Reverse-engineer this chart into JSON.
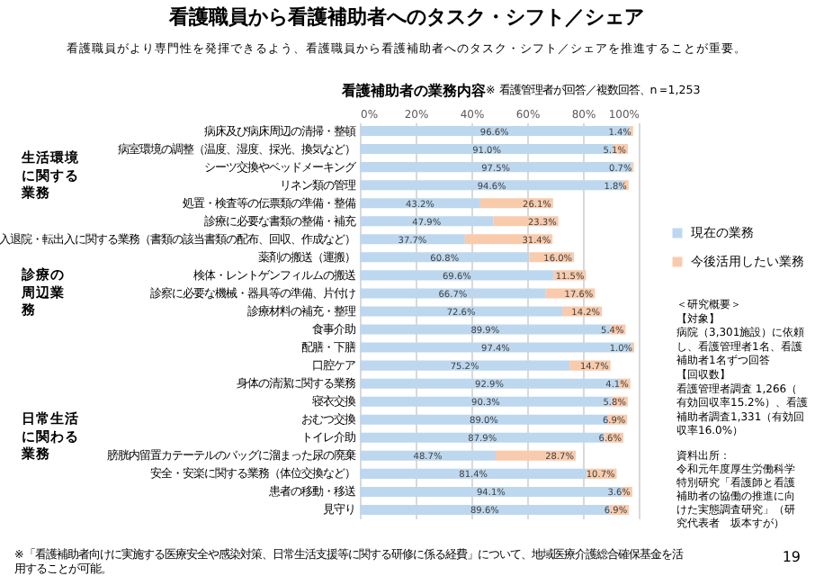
{
  "chart_data": {
    "type": "bar",
    "orientation": "horizontal",
    "stacked": true,
    "title": "看護職員から看護補助者へのタスク・シフト／シェア",
    "subtitle": "看護職員がより専門性を発揮できるよう、看護職員から看護補助者へのタスク・シフト／シェアを推進することが重要。",
    "categories": [
      "病床及び病床周辺の清掃・整頓",
      "病室環境の調整（温度、湿度、採光、換気など）",
      "シーツ交換やベッドメーキング",
      "リネン類の管理",
      "処置・検査等の伝票類の準備・整備",
      "診療に必要な書類の整備・補充",
      "入退院・転出入に関する業務（書類の該当書類の配布、回収、作成など）",
      "薬剤の搬送（運搬）",
      "検体・レントゲンフィルムの搬送",
      "診察に必要な機械・器具等の準備、片付け",
      "診療材料の補充・整理",
      "食事介助",
      "配膳・下膳",
      "口腔ケア",
      "身体の清潔に関する業務",
      "寝衣交換",
      "おむつ交換",
      "トイレ介助",
      "膀胱内留置カテーテルのバッグに溜まった尿の廃棄",
      "安全・安楽に関する業務（体位交換など）",
      "患者の移動・移送",
      "見守り"
    ],
    "series": [
      {
        "name": "現在の業務",
        "color": "#bdd7ee",
        "values": [
          96.6,
          91.0,
          97.5,
          94.6,
          43.2,
          47.9,
          37.7,
          60.8,
          69.6,
          66.7,
          72.6,
          89.9,
          97.4,
          75.2,
          92.9,
          90.3,
          89.0,
          87.9,
          48.7,
          81.4,
          94.1,
          89.6
        ],
        "value_labels": [
          "96.6%",
          "91.0%",
          "97.5%",
          "94.6%",
          "43.2%",
          "47.9%",
          "37.7%",
          "60.8%",
          "69.6%",
          "66.7%",
          "72.6%",
          "89.9%",
          "97.4%",
          "75.2%",
          "92.9%",
          "90.3%",
          "89.0%",
          "87.9%",
          "48.7%",
          "81.4%",
          "94.1%",
          "89.6%"
        ]
      },
      {
        "name": "今後活用したい業務",
        "color": "#f8cbad",
        "values": [
          1.4,
          5.1,
          0.7,
          1.8,
          26.1,
          23.3,
          31.4,
          16.0,
          11.5,
          17.6,
          14.2,
          5.4,
          1.0,
          14.7,
          4.1,
          5.8,
          6.9,
          6.6,
          28.7,
          10.7,
          3.6,
          6.9
        ],
        "value_labels": [
          "1.4%",
          "5.1%",
          "0.7%",
          "1.8%",
          "26.1%",
          "23.3%",
          "31.4%",
          "16.0%",
          "11.5%",
          "17.6%",
          "14.2%",
          "5.4%",
          "1.0%",
          "14.7%",
          "4.1%",
          "5.8%",
          "6.9%",
          "6.6%",
          "28.7%",
          "10.7%",
          "3.6%",
          "6.9%"
        ]
      }
    ],
    "xlim": [
      0,
      100
    ],
    "xticks": [
      {
        "value": 0,
        "label": "0%"
      },
      {
        "value": 20,
        "label": "20%"
      },
      {
        "value": 40,
        "label": "40%"
      },
      {
        "value": 60,
        "label": "60%"
      },
      {
        "value": 80,
        "label": "80%"
      },
      {
        "value": 100,
        "label": "100%"
      }
    ],
    "grid": "x",
    "legend": "right",
    "annotations": [
      "看護補助者の業務内容",
      "※ 看護管理者が回答／複数回答、n＝1,253",
      "生活環境に関する業務",
      "診療の周辺業務",
      "日常生活に関わる業務",
      "※「看護補助者向けに実施する医療安全や感染対策、日常生活支援等に関する研修に係る経費」について、地域医療介護総合確保基金を活用することが可能。",
      "＜研究概要＞",
      "【対象】",
      "病院（3,301施設）に依頼し、看護管理者1名、看護補助者1名ずつ回答",
      "【回収数】",
      "看護管理者調査 1,266（有効回収率15.2%）、看護補助者調査1,331（有効回収率16.0%）",
      "資料出所：",
      "令和元年度厚生労働科学特別研究「看護師と看護補助者の協働の推進に向けた実態調査研究」（研究代表者　坂本すが）",
      "19"
    ]
  }
}
